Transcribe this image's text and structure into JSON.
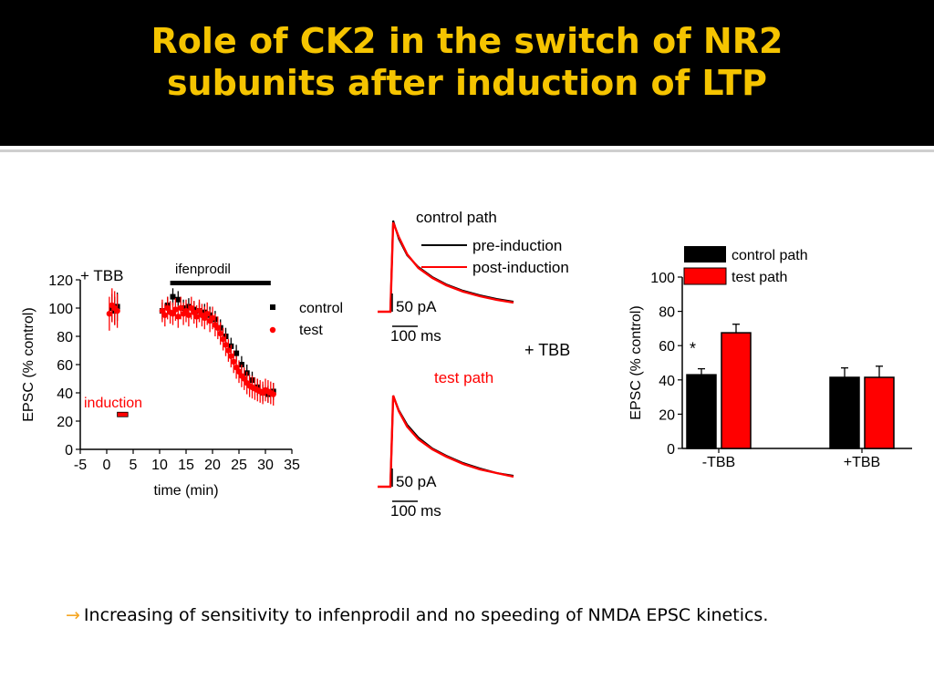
{
  "slide": {
    "title_line1": "Role of CK2 in the switch of NR2",
    "title_line2": "subunits after induction of LTP",
    "bullet_arrow": "→",
    "bullet_text": "Increasing of sensitivity to infenprodil and no speeding of NMDA EPSC kinetics.",
    "colors": {
      "title": "#f5c400",
      "band": "#000000",
      "control": "#000000",
      "test": "#ff0000",
      "arrow": "#f5a623"
    }
  },
  "chart_data": [
    {
      "type": "scatter",
      "panel_label": "+ TBB",
      "bar_label": "ifenprodil",
      "induction_label": "induction",
      "xlabel": "time (min)",
      "ylabel": "EPSC (% control)",
      "xlim": [
        -5,
        35
      ],
      "ylim": [
        0,
        120
      ],
      "xticks": [
        -5,
        0,
        5,
        10,
        15,
        20,
        25,
        30,
        35
      ],
      "yticks": [
        0,
        20,
        40,
        60,
        80,
        100,
        120
      ],
      "ifenprodil_range": [
        12,
        31
      ],
      "induction_range": [
        2,
        4
      ],
      "induction_level": 25,
      "legend": [
        "control",
        "test"
      ],
      "series": [
        {
          "name": "control",
          "x": [
            1,
            1.5,
            2,
            10.5,
            11.5,
            12.5,
            13.5,
            14.5,
            15.5,
            16.5,
            17.5,
            18.5,
            19.5,
            20.5,
            21.5,
            22.5,
            23.5,
            24.5,
            25.5,
            26.5,
            27.5,
            28.5,
            29.5,
            30.5,
            31.5
          ],
          "y": [
            100,
            98,
            101,
            98,
            102,
            108,
            106,
            100,
            101,
            99,
            98,
            97,
            95,
            92,
            86,
            80,
            73,
            68,
            60,
            54,
            49,
            44,
            40,
            39,
            41
          ],
          "err": [
            10,
            10,
            10,
            6,
            6,
            6,
            6,
            6,
            6,
            6,
            6,
            6,
            6,
            6,
            6,
            6,
            6,
            6,
            6,
            6,
            6,
            6,
            6,
            6,
            6
          ]
        },
        {
          "name": "test",
          "x": [
            0.5,
            1,
            1.5,
            2,
            10.5,
            11,
            11.5,
            12,
            12.5,
            13,
            13.5,
            14,
            14.5,
            15,
            15.5,
            16,
            16.5,
            17,
            17.5,
            18,
            18.5,
            19,
            19.5,
            20,
            20.5,
            21,
            21.5,
            22,
            22.5,
            23,
            23.5,
            24,
            24.5,
            25,
            25.5,
            26,
            26.5,
            27,
            27.5,
            28,
            28.5,
            29,
            29.5,
            30,
            30.5,
            31,
            31.5
          ],
          "y": [
            96,
            102,
            100,
            98,
            98,
            95,
            100,
            97,
            96,
            99,
            94,
            100,
            96,
            98,
            95,
            100,
            97,
            94,
            98,
            95,
            93,
            96,
            91,
            93,
            88,
            86,
            82,
            78,
            74,
            70,
            66,
            62,
            58,
            55,
            52,
            50,
            47,
            45,
            44,
            43,
            42,
            41,
            40,
            42,
            41,
            40,
            39
          ],
          "err": [
            12,
            12,
            12,
            12,
            8,
            8,
            8,
            8,
            8,
            8,
            8,
            8,
            8,
            8,
            8,
            8,
            8,
            8,
            8,
            8,
            8,
            8,
            8,
            8,
            8,
            8,
            8,
            8,
            8,
            8,
            8,
            8,
            8,
            8,
            8,
            8,
            8,
            8,
            8,
            8,
            8,
            8,
            8,
            8,
            8,
            8,
            8
          ]
        }
      ]
    },
    {
      "type": "line",
      "title": "control path",
      "legend": [
        "pre-induction",
        "post-induction"
      ],
      "scale_current": "50 pA",
      "scale_time": "100 ms",
      "time_ms": [
        0,
        10,
        30,
        60,
        100,
        150,
        200,
        260,
        320,
        380,
        440
      ],
      "series": [
        {
          "name": "pre-induction",
          "values": [
            0,
            100,
            80,
            62,
            49,
            38,
            30,
            23,
            18,
            14,
            11
          ]
        },
        {
          "name": "post-induction",
          "values": [
            0,
            98,
            82,
            63,
            48,
            37,
            29,
            22,
            17,
            13,
            10
          ]
        }
      ]
    },
    {
      "type": "line",
      "title": "test path",
      "side_label": "+ TBB",
      "scale_current": "50 pA",
      "scale_time": "100 ms",
      "time_ms": [
        0,
        10,
        30,
        60,
        100,
        150,
        200,
        260,
        320,
        380,
        440
      ],
      "series": [
        {
          "name": "pre-induction",
          "values": [
            0,
            100,
            84,
            68,
            54,
            42,
            34,
            26,
            20,
            15,
            12
          ]
        },
        {
          "name": "post-induction",
          "values": [
            0,
            100,
            83,
            66,
            52,
            41,
            33,
            25,
            19,
            15,
            11
          ]
        }
      ]
    },
    {
      "type": "bar",
      "categories": [
        "-TBB",
        "+TBB"
      ],
      "series": [
        {
          "name": "control path",
          "values": [
            43,
            41.5
          ],
          "errors": [
            3.5,
            5.5
          ]
        },
        {
          "name": "test path",
          "values": [
            67.5,
            41.5
          ],
          "errors": [
            5,
            6.5
          ]
        }
      ],
      "ylabel": "EPSC (% control)",
      "ylim": [
        0,
        100
      ],
      "yticks": [
        0,
        20,
        40,
        60,
        80,
        100
      ],
      "significance_marker": "*"
    }
  ]
}
